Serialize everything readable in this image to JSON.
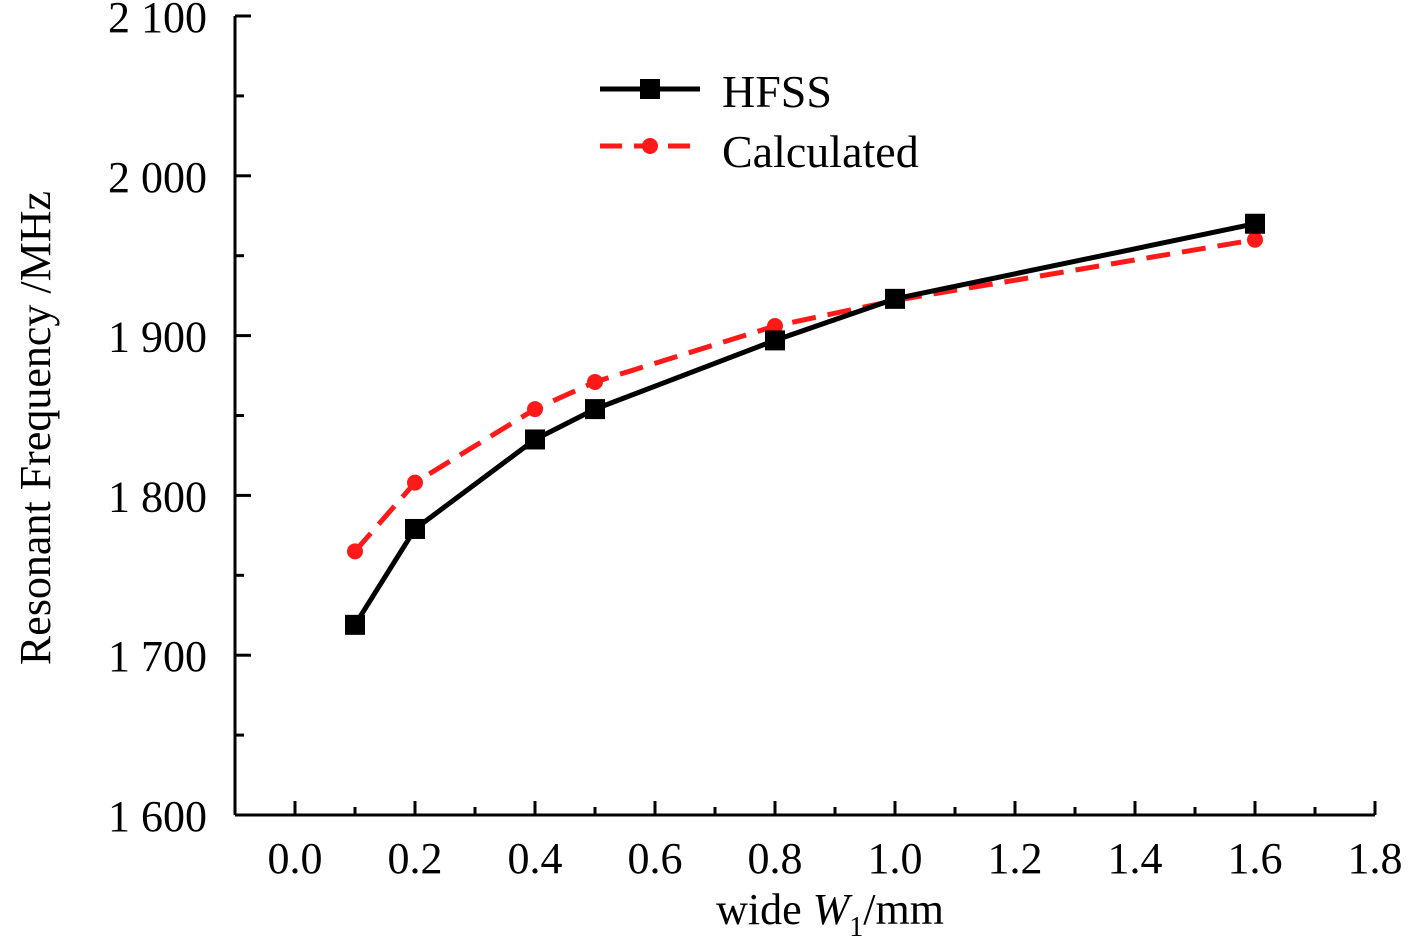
{
  "chart_data": {
    "type": "line",
    "title": "",
    "xlabel": {
      "prefix": "wide ",
      "symbol": "W",
      "subscript": "1",
      "suffix": "/mm"
    },
    "ylabel": "Resonant Frequency /MHz",
    "xlim": [
      -0.1,
      1.8
    ],
    "ylim": [
      1600,
      2100
    ],
    "x_ticks": [
      0.0,
      0.2,
      0.4,
      0.6,
      0.8,
      1.0,
      1.2,
      1.4,
      1.6,
      1.8
    ],
    "x_tick_labels": [
      "0.0",
      "0.2",
      "0.4",
      "0.6",
      "0.8",
      "1.0",
      "1.2",
      "1.4",
      "1.6",
      "1.8"
    ],
    "y_ticks": [
      1600,
      1700,
      1800,
      1900,
      2000,
      2100
    ],
    "y_tick_labels": [
      "1 600",
      "1 700",
      "1 800",
      "1 900",
      "2 000",
      "2 100"
    ],
    "x_minor_ticks": [
      -0.1,
      0.1,
      0.3,
      0.5,
      0.7,
      0.9,
      1.1,
      1.3,
      1.5,
      1.7
    ],
    "y_minor_ticks": [
      1650,
      1750,
      1850,
      1950,
      2050
    ],
    "grid": false,
    "legend_position": "top-center",
    "series": [
      {
        "name": "HFSS",
        "color": "#000000",
        "marker": "square",
        "line_style": "solid",
        "x": [
          0.1,
          0.2,
          0.4,
          0.5,
          0.8,
          1.0,
          1.6
        ],
        "y": [
          1719,
          1779,
          1835,
          1854,
          1897,
          1923,
          1970
        ]
      },
      {
        "name": "Calculated",
        "color": "#ff1a1a",
        "marker": "circle",
        "line_style": "dashed",
        "x": [
          0.1,
          0.2,
          0.4,
          0.5,
          0.8,
          1.0,
          1.6
        ],
        "y": [
          1765,
          1808,
          1854,
          1871,
          1906,
          1922,
          1960
        ]
      }
    ]
  }
}
